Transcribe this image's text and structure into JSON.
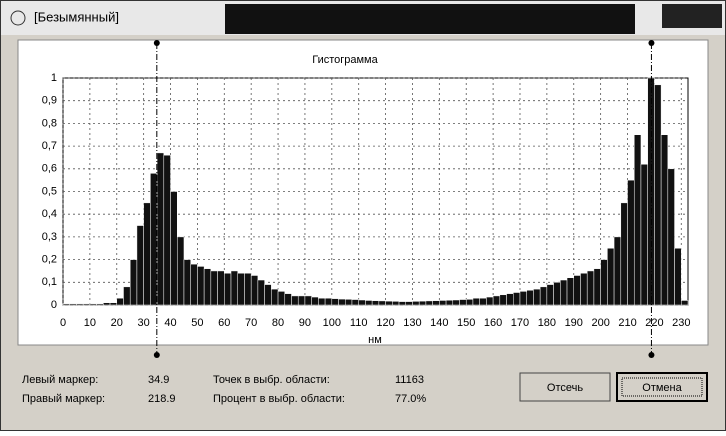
{
  "window": {
    "title": "[Безымянный]"
  },
  "chart_data": {
    "type": "histogram",
    "title": "Гистограмма",
    "x_label": "нм",
    "color": "#111111",
    "grid": true,
    "bins": [
      0,
      2.5,
      5,
      7.5,
      10,
      12.5,
      15,
      17.5,
      20,
      22.5,
      25,
      27.5,
      30,
      32.5,
      35,
      37.5,
      40,
      42.5,
      45,
      47.5,
      50,
      52.5,
      55,
      57.5,
      60,
      62.5,
      65,
      67.5,
      70,
      72.5,
      75,
      77.5,
      80,
      82.5,
      85,
      87.5,
      90,
      92.5,
      95,
      97.5,
      100,
      102.5,
      105,
      107.5,
      110,
      112.5,
      115,
      117.5,
      120,
      122.5,
      125,
      127.5,
      130,
      132.5,
      135,
      137.5,
      140,
      142.5,
      145,
      147.5,
      150,
      152.5,
      155,
      157.5,
      160,
      162.5,
      165,
      167.5,
      170,
      172.5,
      175,
      177.5,
      180,
      182.5,
      185,
      187.5,
      190,
      192.5,
      195,
      197.5,
      200,
      202.5,
      205,
      207.5,
      210,
      212.5,
      215,
      217.5,
      220,
      222.5,
      225,
      227.5,
      230,
      232.5
    ],
    "values": [
      0.005,
      0.005,
      0.005,
      0.005,
      0.005,
      0.005,
      0.01,
      0.01,
      0.03,
      0.08,
      0.2,
      0.35,
      0.45,
      0.58,
      0.67,
      0.66,
      0.5,
      0.3,
      0.2,
      0.18,
      0.17,
      0.16,
      0.15,
      0.15,
      0.14,
      0.15,
      0.14,
      0.14,
      0.13,
      0.11,
      0.09,
      0.07,
      0.06,
      0.05,
      0.04,
      0.04,
      0.04,
      0.035,
      0.03,
      0.03,
      0.028,
      0.026,
      0.025,
      0.024,
      0.022,
      0.02,
      0.019,
      0.018,
      0.017,
      0.016,
      0.015,
      0.015,
      0.016,
      0.017,
      0.018,
      0.019,
      0.02,
      0.021,
      0.022,
      0.024,
      0.025,
      0.03,
      0.03,
      0.035,
      0.04,
      0.045,
      0.05,
      0.055,
      0.06,
      0.065,
      0.07,
      0.08,
      0.09,
      0.1,
      0.11,
      0.12,
      0.13,
      0.14,
      0.15,
      0.16,
      0.2,
      0.25,
      0.3,
      0.45,
      0.55,
      0.75,
      0.62,
      1.0,
      0.97,
      0.75,
      0.6,
      0.25,
      0.02
    ],
    "xlim": [
      0,
      232.5
    ],
    "ylim": [
      0,
      1
    ],
    "xticks": [
      0,
      10,
      20,
      30,
      40,
      50,
      60,
      70,
      80,
      90,
      100,
      110,
      120,
      130,
      140,
      150,
      160,
      170,
      180,
      190,
      200,
      210,
      220,
      230
    ],
    "yticks": [
      0,
      {
        "value": 0.1,
        "label": "0,1"
      },
      {
        "value": 0.2,
        "label": "0,2"
      },
      {
        "value": 0.3,
        "label": "0,3"
      },
      {
        "value": 0.4,
        "label": "0,4"
      },
      {
        "value": 0.5,
        "label": "0,5"
      },
      {
        "value": 0.6,
        "label": "0,6"
      },
      {
        "value": 0.7,
        "label": "0,7"
      },
      {
        "value": 0.8,
        "label": "0,8"
      },
      {
        "value": 0.9,
        "label": "0,9"
      },
      1
    ],
    "markers": [
      34.9,
      218.9
    ]
  },
  "stats": {
    "left_label": "Левый маркер:",
    "right_label": "Правый маркер:",
    "points_label": "Точек в выбр. области:",
    "points": 11163,
    "percent_label": "Процент в выбр. области:",
    "percent": {
      "value": 77.0,
      "label": "77.0%"
    }
  },
  "buttons": {
    "cut": "Отсечь",
    "cancel": "Отмена"
  }
}
